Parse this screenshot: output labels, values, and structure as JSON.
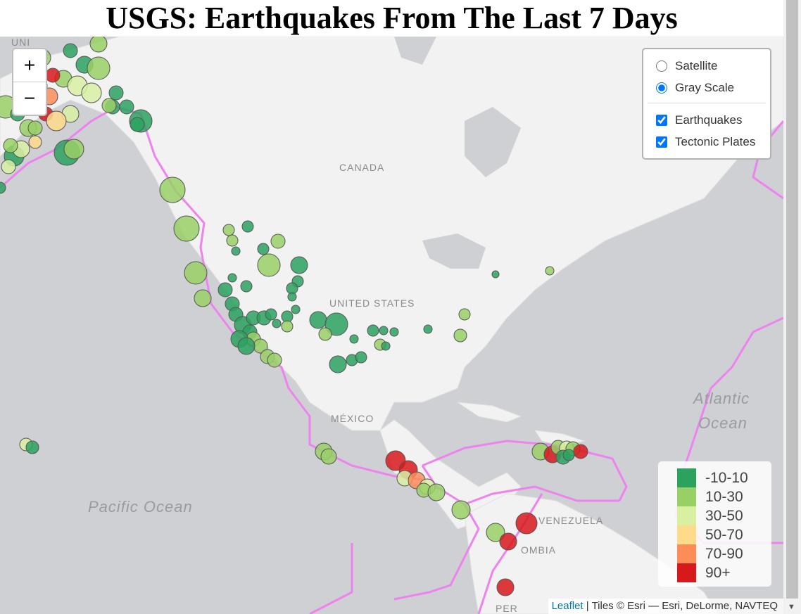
{
  "page": {
    "title": "USGS: Earthquakes From The Last 7 Days"
  },
  "zoom": {
    "in_label": "+",
    "out_label": "−"
  },
  "layers": {
    "base": [
      {
        "label": "Satellite",
        "checked": false
      },
      {
        "label": "Gray Scale",
        "checked": true
      }
    ],
    "overlays": [
      {
        "label": "Earthquakes",
        "checked": true
      },
      {
        "label": "Tectonic Plates",
        "checked": true
      }
    ]
  },
  "map_labels": {
    "canada": "CANADA",
    "united_states": "UNITED STATES",
    "mexico": "MÉXICO",
    "venezuela": "VENEZUELA",
    "colombia": "OMBIA",
    "peru": "PER",
    "pacific": "Pacific Ocean",
    "atlantic_1": "Atlantic",
    "atlantic_2": "Ocean",
    "unit_top": "UNI"
  },
  "legend": {
    "items": [
      {
        "label": "-10-10",
        "color": "#2ca25f"
      },
      {
        "label": "10-30",
        "color": "#99d066"
      },
      {
        "label": "30-50",
        "color": "#d9f0a3"
      },
      {
        "label": "50-70",
        "color": "#fedb8b"
      },
      {
        "label": "70-90",
        "color": "#fc8d59"
      },
      {
        "label": "90+",
        "color": "#d7191c"
      }
    ]
  },
  "attribution": {
    "link": "Leaflet",
    "text": " | Tiles © Esri — Esri, DeLorme, NAVTEQ"
  },
  "colors": {
    "plate_lines": "#ee82ee",
    "land": "#f2f2f2",
    "water": "#cfd0d4"
  }
}
